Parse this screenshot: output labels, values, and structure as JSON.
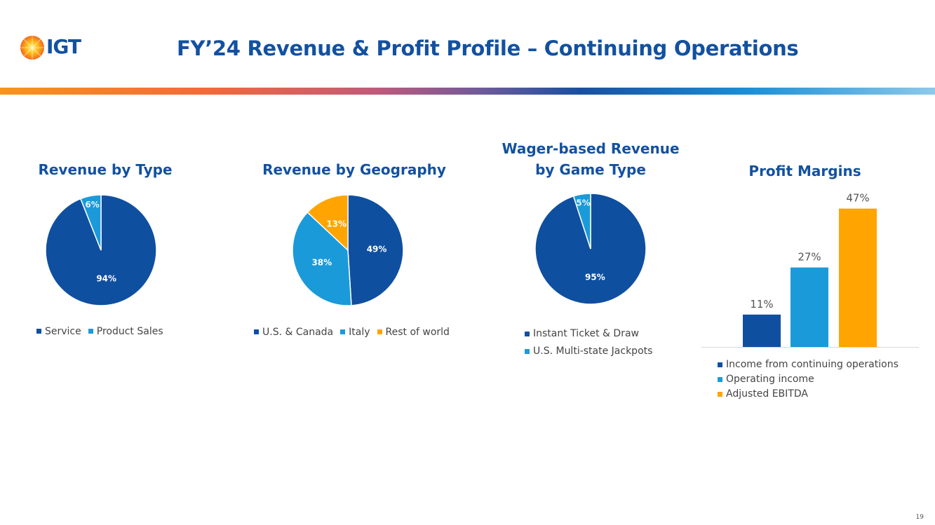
{
  "header": {
    "logo_text": "IGT",
    "title": "FY’24 Revenue & Profit Profile – Continuing Operations"
  },
  "colors": {
    "dark_blue": "#0f4fa0",
    "light_blue": "#1b9ad9",
    "orange": "#ffa400"
  },
  "chart_data": [
    {
      "type": "pie",
      "title": "Revenue by Type",
      "categories": [
        "Service",
        "Product Sales"
      ],
      "values": [
        94,
        6
      ],
      "labels": [
        "94%",
        "6%"
      ],
      "colors": [
        "#0f4fa0",
        "#1b9ad9"
      ],
      "legend": "bottom"
    },
    {
      "type": "pie",
      "title": "Revenue by Geography",
      "categories": [
        "U.S. & Canada",
        "Italy",
        "Rest of world"
      ],
      "values": [
        49,
        38,
        13
      ],
      "labels": [
        "49%",
        "38%",
        "13%"
      ],
      "colors": [
        "#0f4fa0",
        "#1b9ad9",
        "#ffa400"
      ],
      "legend": "bottom"
    },
    {
      "type": "pie",
      "title": "Wager-based Revenue by Game Type",
      "title_lines": [
        "Wager-based Revenue",
        "by Game Type"
      ],
      "categories": [
        "Instant Ticket & Draw",
        "U.S. Multi-state Jackpots"
      ],
      "values": [
        95,
        5
      ],
      "labels": [
        "95%",
        "5%"
      ],
      "colors": [
        "#0f4fa0",
        "#1b9ad9"
      ],
      "legend": "bottom"
    },
    {
      "type": "bar",
      "title": "Profit Margins",
      "categories": [
        "Income from continuing operations",
        "Operating income",
        "Adjusted EBITDA"
      ],
      "values": [
        11,
        27,
        47
      ],
      "labels": [
        "11%",
        "27%",
        "47%"
      ],
      "colors": [
        "#0f4fa0",
        "#1b9ad9",
        "#ffa400"
      ],
      "ylim": [
        0,
        50
      ],
      "grid": false,
      "legend": "bottom"
    }
  ],
  "footer": {
    "page_number": "19"
  }
}
